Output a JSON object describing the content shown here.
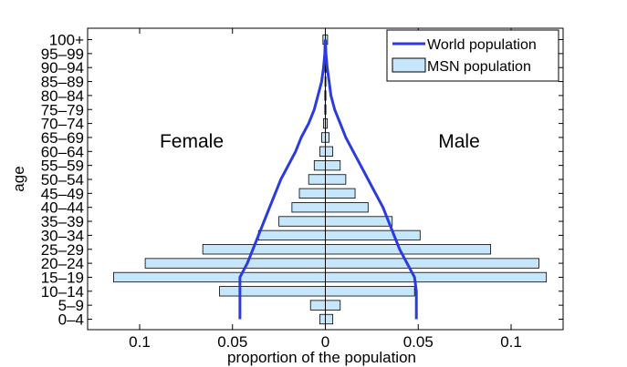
{
  "chart_data": {
    "type": "bar",
    "orientation": "horizontal-population-pyramid",
    "categories": [
      "0–4",
      "5–9",
      "10–14",
      "15–19",
      "20–24",
      "25–29",
      "30–34",
      "35–39",
      "40–44",
      "45–49",
      "50–54",
      "55–59",
      "60–64",
      "65–69",
      "70–74",
      "75–79",
      "80–84",
      "85–89",
      "90–94",
      "95–99",
      "100+"
    ],
    "series": [
      {
        "name": "MSN population",
        "type": "bar",
        "color": "#c6e6fb",
        "female": [
          0.003,
          0.008,
          0.057,
          0.114,
          0.097,
          0.066,
          0.036,
          0.025,
          0.018,
          0.014,
          0.009,
          0.006,
          0.003,
          0.002,
          0.001,
          0.0003,
          0.0003,
          0.0002,
          0.0002,
          0.0001,
          0.0013
        ],
        "male": [
          0.004,
          0.008,
          0.048,
          0.119,
          0.115,
          0.089,
          0.051,
          0.036,
          0.023,
          0.016,
          0.011,
          0.008,
          0.004,
          0.002,
          0.001,
          0.0003,
          0.0003,
          0.0002,
          0.0002,
          0.0001,
          0.0012
        ]
      },
      {
        "name": "World population",
        "type": "line",
        "color": "#2b3be0",
        "female": [
          0.046,
          0.046,
          0.046,
          0.046,
          0.042,
          0.039,
          0.036,
          0.033,
          0.03,
          0.027,
          0.024,
          0.02,
          0.016,
          0.013,
          0.009,
          0.006,
          0.004,
          0.002,
          0.001,
          0.0003,
          0.0001
        ],
        "male": [
          0.049,
          0.049,
          0.049,
          0.048,
          0.044,
          0.04,
          0.037,
          0.034,
          0.031,
          0.027,
          0.023,
          0.019,
          0.015,
          0.011,
          0.008,
          0.005,
          0.003,
          0.002,
          0.001,
          0.0003,
          0.0001
        ]
      }
    ],
    "xlabel": "proportion of the population",
    "ylabel": "age",
    "xlim": [
      -0.128,
      0.128
    ],
    "xticks": [
      -0.1,
      -0.05,
      0,
      0.05,
      0.1
    ],
    "xtick_labels": [
      "0.1",
      "0.05",
      "0",
      "0.05",
      "0.1"
    ],
    "side_labels": {
      "left": "Female",
      "right": "Male"
    },
    "legend": {
      "position": "top-right",
      "entries": [
        "World population",
        "MSN population"
      ]
    },
    "grid": false
  }
}
